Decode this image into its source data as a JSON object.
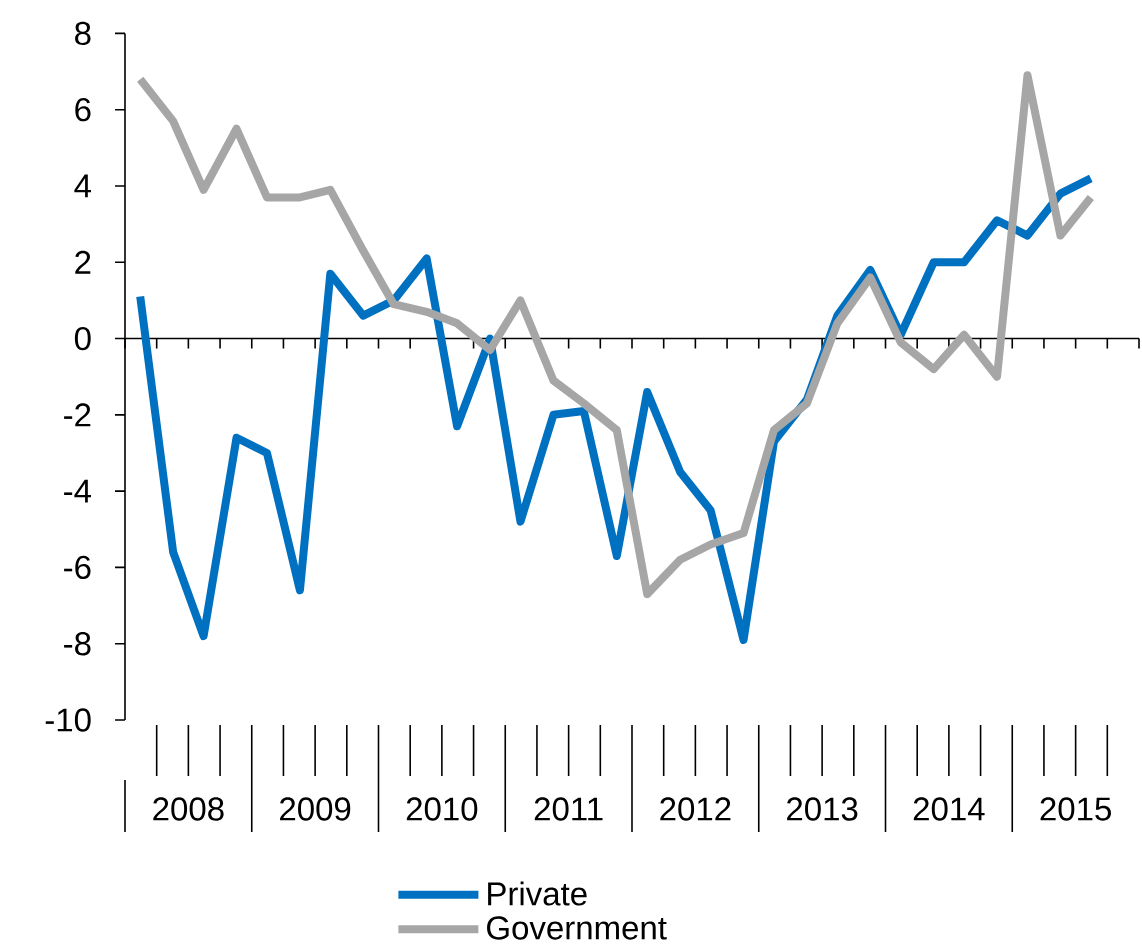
{
  "chart_data": {
    "type": "line",
    "x": [
      2008.125,
      2008.375,
      2008.625,
      2008.875,
      2009.125,
      2009.375,
      2009.625,
      2009.875,
      2010.125,
      2010.375,
      2010.625,
      2010.875,
      2011.125,
      2011.375,
      2011.625,
      2011.875,
      2012.125,
      2012.375,
      2012.625,
      2012.875,
      2013.125,
      2013.375,
      2013.625,
      2013.875,
      2014.125,
      2014.375,
      2014.625,
      2014.875,
      2015.125,
      2015.375,
      2015.625
    ],
    "xlim": [
      2008,
      2016
    ],
    "xticks": [
      {
        "value": 2008,
        "label": null
      },
      {
        "value": 2008.25,
        "label": null
      },
      {
        "value": 2008.5,
        "label": "2008"
      },
      {
        "value": 2008.75,
        "label": null
      },
      {
        "value": 2009,
        "label": null
      },
      {
        "value": 2009.25,
        "label": null
      },
      {
        "value": 2009.5,
        "label": "2009"
      },
      {
        "value": 2009.75,
        "label": null
      },
      {
        "value": 2010,
        "label": null
      },
      {
        "value": 2010.25,
        "label": null
      },
      {
        "value": 2010.5,
        "label": "2010"
      },
      {
        "value": 2010.75,
        "label": null
      },
      {
        "value": 2011,
        "label": null
      },
      {
        "value": 2011.25,
        "label": null
      },
      {
        "value": 2011.5,
        "label": "2011"
      },
      {
        "value": 2011.75,
        "label": null
      },
      {
        "value": 2012,
        "label": null
      },
      {
        "value": 2012.25,
        "label": null
      },
      {
        "value": 2012.5,
        "label": "2012"
      },
      {
        "value": 2012.75,
        "label": null
      },
      {
        "value": 2013,
        "label": null
      },
      {
        "value": 2013.25,
        "label": null
      },
      {
        "value": 2013.5,
        "label": "2013"
      },
      {
        "value": 2013.75,
        "label": null
      },
      {
        "value": 2014,
        "label": null
      },
      {
        "value": 2014.25,
        "label": null
      },
      {
        "value": 2014.5,
        "label": "2014"
      },
      {
        "value": 2014.75,
        "label": null
      },
      {
        "value": 2015,
        "label": null
      },
      {
        "value": 2015.25,
        "label": null
      },
      {
        "value": 2015.5,
        "label": "2015"
      },
      {
        "value": 2015.75,
        "label": null
      },
      {
        "value": 2016,
        "label": null
      }
    ],
    "ylim": [
      -10,
      8
    ],
    "yticks": [
      -10,
      -8,
      -6,
      -4,
      -2,
      0,
      2,
      4,
      6,
      8
    ],
    "series": [
      {
        "name": "Private",
        "color": "#0070c0",
        "values": [
          1.1,
          -5.6,
          -7.8,
          -2.6,
          -3.0,
          -6.6,
          1.7,
          0.6,
          1.0,
          2.1,
          -2.3,
          0.0,
          -4.8,
          -2.0,
          -1.9,
          -5.7,
          -1.4,
          -3.5,
          -4.5,
          -7.9,
          -2.7,
          -1.6,
          0.6,
          1.8,
          0.1,
          2.0,
          2.0,
          3.1,
          2.7,
          3.8,
          4.2
        ]
      },
      {
        "name": "Government",
        "color": "#a6a6a6",
        "values": [
          6.8,
          5.7,
          3.9,
          5.5,
          3.7,
          3.7,
          3.9,
          2.3,
          0.9,
          0.7,
          0.4,
          -0.3,
          1.0,
          -1.1,
          -1.7,
          -2.4,
          -6.7,
          -5.8,
          -5.4,
          -5.1,
          -2.4,
          -1.7,
          0.4,
          1.6,
          -0.1,
          -0.8,
          0.1,
          -1.0,
          6.9,
          2.7,
          3.7
        ]
      }
    ],
    "legend": "bottom"
  }
}
